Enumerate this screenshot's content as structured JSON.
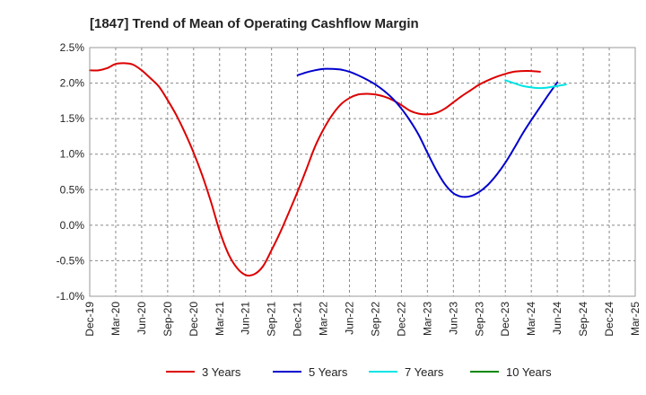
{
  "chart_data": {
    "type": "line",
    "title": "[1847]  Trend of Mean of Operating Cashflow Margin",
    "xlabel": "",
    "ylabel": "",
    "ylim": [
      -1.0,
      2.5
    ],
    "yticks": [
      -1.0,
      -0.5,
      0.0,
      0.5,
      1.0,
      1.5,
      2.0,
      2.5
    ],
    "ytick_labels": [
      "-1.0%",
      "-0.5%",
      "0.0%",
      "0.5%",
      "1.0%",
      "1.5%",
      "2.0%",
      "2.5%"
    ],
    "categories": [
      "Dec-19",
      "Mar-20",
      "Jun-20",
      "Sep-20",
      "Dec-20",
      "Mar-21",
      "Jun-21",
      "Sep-21",
      "Dec-21",
      "Mar-22",
      "Jun-22",
      "Sep-22",
      "Dec-22",
      "Mar-23",
      "Jun-23",
      "Sep-23",
      "Dec-23",
      "Mar-24",
      "Jun-24",
      "Sep-24",
      "Dec-24",
      "Mar-25"
    ],
    "grid": true,
    "legend_position": "bottom",
    "series": [
      {
        "name": "3 Years",
        "color": "#dd0000",
        "points": [
          [
            "Dec-19",
            2.18
          ],
          [
            "Jan-20",
            2.18
          ],
          [
            "Feb-20",
            2.21
          ],
          [
            "Mar-20",
            2.27
          ],
          [
            "Apr-20",
            2.28
          ],
          [
            "May-20",
            2.26
          ],
          [
            "Jun-20",
            2.18
          ],
          [
            "Jul-20",
            2.07
          ],
          [
            "Aug-20",
            1.95
          ],
          [
            "Sep-20",
            1.76
          ],
          [
            "Oct-20",
            1.55
          ],
          [
            "Nov-20",
            1.3
          ],
          [
            "Dec-20",
            1.02
          ],
          [
            "Jan-21",
            0.7
          ],
          [
            "Feb-21",
            0.33
          ],
          [
            "Mar-21",
            -0.08
          ],
          [
            "Apr-21",
            -0.4
          ],
          [
            "May-21",
            -0.6
          ],
          [
            "Jun-21",
            -0.7
          ],
          [
            "Jul-21",
            -0.69
          ],
          [
            "Aug-21",
            -0.58
          ],
          [
            "Sep-21",
            -0.35
          ],
          [
            "Oct-21",
            -0.1
          ],
          [
            "Nov-21",
            0.18
          ],
          [
            "Dec-21",
            0.47
          ],
          [
            "Jan-22",
            0.78
          ],
          [
            "Feb-22",
            1.1
          ],
          [
            "Mar-22",
            1.35
          ],
          [
            "Apr-22",
            1.55
          ],
          [
            "May-22",
            1.7
          ],
          [
            "Jun-22",
            1.79
          ],
          [
            "Jul-22",
            1.84
          ],
          [
            "Aug-22",
            1.85
          ],
          [
            "Sep-22",
            1.84
          ],
          [
            "Oct-22",
            1.81
          ],
          [
            "Nov-22",
            1.76
          ],
          [
            "Dec-22",
            1.69
          ],
          [
            "Jan-23",
            1.61
          ],
          [
            "Feb-23",
            1.57
          ],
          [
            "Mar-23",
            1.56
          ],
          [
            "Apr-23",
            1.58
          ],
          [
            "May-23",
            1.64
          ],
          [
            "Jun-23",
            1.73
          ],
          [
            "Jul-23",
            1.82
          ],
          [
            "Aug-23",
            1.9
          ],
          [
            "Sep-23",
            1.98
          ],
          [
            "Oct-23",
            2.04
          ],
          [
            "Nov-23",
            2.09
          ],
          [
            "Dec-23",
            2.13
          ],
          [
            "Jan-24",
            2.16
          ],
          [
            "Feb-24",
            2.17
          ],
          [
            "Mar-24",
            2.17
          ],
          [
            "Apr-24",
            2.16
          ]
        ]
      },
      {
        "name": "5 Years",
        "color": "#0000cc",
        "points": [
          [
            "Dec-21",
            2.11
          ],
          [
            "Jan-22",
            2.15
          ],
          [
            "Feb-22",
            2.18
          ],
          [
            "Mar-22",
            2.2
          ],
          [
            "Apr-22",
            2.2
          ],
          [
            "May-22",
            2.19
          ],
          [
            "Jun-22",
            2.16
          ],
          [
            "Jul-22",
            2.11
          ],
          [
            "Aug-22",
            2.05
          ],
          [
            "Sep-22",
            1.98
          ],
          [
            "Oct-22",
            1.89
          ],
          [
            "Nov-22",
            1.78
          ],
          [
            "Dec-22",
            1.64
          ],
          [
            "Jan-23",
            1.47
          ],
          [
            "Feb-23",
            1.27
          ],
          [
            "Mar-23",
            1.02
          ],
          [
            "Apr-23",
            0.78
          ],
          [
            "May-23",
            0.58
          ],
          [
            "Jun-23",
            0.45
          ],
          [
            "Jul-23",
            0.4
          ],
          [
            "Aug-23",
            0.41
          ],
          [
            "Sep-23",
            0.47
          ],
          [
            "Oct-23",
            0.57
          ],
          [
            "Nov-23",
            0.71
          ],
          [
            "Dec-23",
            0.88
          ],
          [
            "Jan-24",
            1.08
          ],
          [
            "Feb-24",
            1.29
          ],
          [
            "Mar-24",
            1.48
          ],
          [
            "Apr-24",
            1.66
          ],
          [
            "May-24",
            1.84
          ],
          [
            "Jun-24",
            2.01
          ]
        ]
      },
      {
        "name": "7 Years",
        "color": "#00e5e5",
        "points": [
          [
            "Dec-23",
            2.04
          ],
          [
            "Jan-24",
            2.0
          ],
          [
            "Feb-24",
            1.96
          ],
          [
            "Mar-24",
            1.94
          ],
          [
            "Apr-24",
            1.93
          ],
          [
            "May-24",
            1.94
          ],
          [
            "Jun-24",
            1.96
          ],
          [
            "Jul-24",
            1.98
          ]
        ]
      },
      {
        "name": "10 Years",
        "color": "#008800",
        "points": []
      }
    ]
  }
}
